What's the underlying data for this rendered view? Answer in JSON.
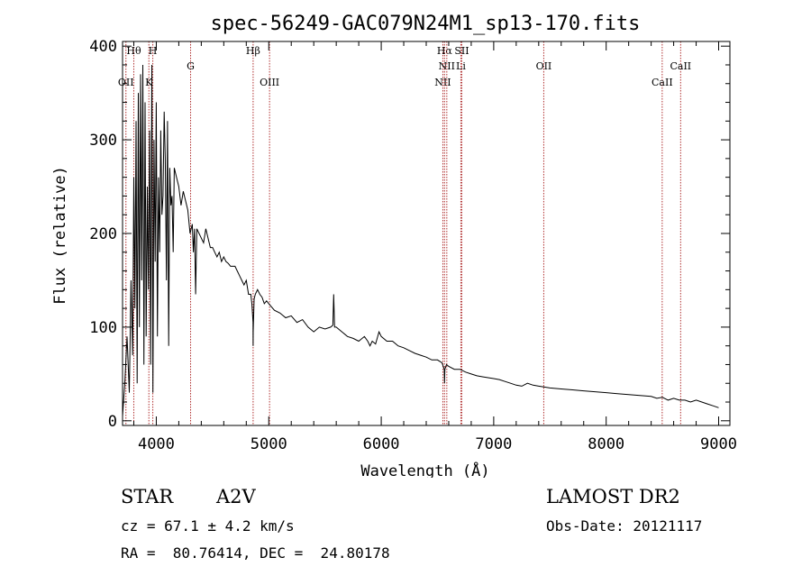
{
  "chart_data": {
    "type": "line",
    "title": "spec-56249-GAC079N24M1_sp13-170.fits",
    "xlabel": "Wavelength (Å)",
    "ylabel": "Flux (relative)",
    "xlim": [
      3700,
      9100
    ],
    "ylim": [
      -5,
      405
    ],
    "xticks": [
      4000,
      5000,
      6000,
      7000,
      8000,
      9000
    ],
    "yticks": [
      0,
      100,
      200,
      300,
      400
    ],
    "grid": false,
    "legend": "none",
    "series": [
      {
        "x": [
          3700,
          3720,
          3740,
          3760,
          3775,
          3790,
          3800,
          3810,
          3820,
          3830,
          3840,
          3850,
          3860,
          3870,
          3880,
          3890,
          3900,
          3910,
          3920,
          3930,
          3940,
          3950,
          3960,
          3970,
          3980,
          3990,
          4000,
          4010,
          4020,
          4030,
          4040,
          4050,
          4060,
          4070,
          4080,
          4090,
          4100,
          4110,
          4120,
          4130,
          4140,
          4150,
          4160,
          4180,
          4200,
          4220,
          4240,
          4260,
          4280,
          4300,
          4320,
          4330,
          4340,
          4350,
          4360,
          4380,
          4400,
          4420,
          4440,
          4460,
          4480,
          4500,
          4520,
          4540,
          4560,
          4580,
          4600,
          4620,
          4640,
          4660,
          4680,
          4700,
          4720,
          4740,
          4760,
          4780,
          4800,
          4820,
          4840,
          4850,
          4860,
          4861,
          4862,
          4870,
          4880,
          4900,
          4920,
          4940,
          4960,
          4980,
          5000,
          5050,
          5100,
          5150,
          5200,
          5250,
          5300,
          5350,
          5400,
          5450,
          5500,
          5550,
          5570,
          5577,
          5585,
          5600,
          5650,
          5700,
          5750,
          5800,
          5850,
          5880,
          5900,
          5920,
          5950,
          5980,
          6000,
          6050,
          6100,
          6150,
          6200,
          6250,
          6300,
          6350,
          6400,
          6450,
          6500,
          6540,
          6560,
          6563,
          6566,
          6580,
          6600,
          6650,
          6700,
          6750,
          6800,
          6850,
          6900,
          6950,
          7000,
          7050,
          7100,
          7150,
          7200,
          7250,
          7300,
          7350,
          7400,
          7450,
          7500,
          7600,
          7700,
          7800,
          7900,
          8000,
          8100,
          8200,
          8300,
          8400,
          8450,
          8500,
          8550,
          8600,
          8650,
          8700,
          8750,
          8800,
          8850,
          8900,
          8950,
          9000
        ],
        "values": [
          5,
          40,
          90,
          30,
          150,
          70,
          260,
          120,
          320,
          40,
          350,
          100,
          370,
          150,
          380,
          60,
          340,
          90,
          250,
          140,
          310,
          60,
          380,
          30,
          300,
          170,
          340,
          90,
          260,
          180,
          310,
          220,
          240,
          330,
          280,
          150,
          320,
          80,
          270,
          230,
          240,
          180,
          270,
          260,
          250,
          230,
          245,
          235,
          225,
          200,
          210,
          180,
          205,
          135,
          205,
          200,
          195,
          190,
          205,
          195,
          185,
          185,
          180,
          175,
          180,
          170,
          175,
          170,
          168,
          165,
          165,
          165,
          160,
          155,
          150,
          145,
          150,
          135,
          135,
          125,
          105,
          80,
          95,
          130,
          135,
          140,
          135,
          132,
          125,
          128,
          125,
          118,
          115,
          110,
          112,
          105,
          108,
          100,
          95,
          100,
          98,
          100,
          102,
          135,
          100,
          100,
          95,
          90,
          88,
          85,
          90,
          85,
          80,
          85,
          82,
          95,
          90,
          85,
          85,
          80,
          78,
          75,
          72,
          70,
          68,
          65,
          65,
          62,
          55,
          40,
          55,
          60,
          58,
          55,
          55,
          52,
          50,
          48,
          47,
          46,
          45,
          44,
          42,
          40,
          38,
          37,
          40,
          38,
          37,
          36,
          35,
          34,
          33,
          32,
          31,
          30,
          29,
          28,
          27,
          26,
          24,
          25,
          22,
          24,
          22,
          22,
          20,
          22,
          20,
          18,
          16,
          14
        ]
      }
    ],
    "lines": [
      {
        "x": 3730,
        "label": "OII",
        "row": 3
      },
      {
        "x": 3800,
        "label": "Hθ",
        "row": 1
      },
      {
        "x": 3934,
        "label": "K",
        "row": 3
      },
      {
        "x": 3969,
        "label": "H",
        "row": 1
      },
      {
        "x": 4305,
        "label": "G",
        "row": 2
      },
      {
        "x": 4861,
        "label": "Hβ",
        "row": 1
      },
      {
        "x": 5007,
        "label": "OIII",
        "row": 3
      },
      {
        "x": 6548,
        "label": "NII",
        "row": 3
      },
      {
        "x": 6563,
        "label": "Hα",
        "row": 1
      },
      {
        "x": 6583,
        "label": "NII",
        "row": 2
      },
      {
        "x": 6708,
        "label": "Li",
        "row": 2
      },
      {
        "x": 6716,
        "label": "SII",
        "row": 1
      },
      {
        "x": 7445,
        "label": "OII",
        "row": 2
      },
      {
        "x": 8498,
        "label": "CaII",
        "row": 3
      },
      {
        "x": 8662,
        "label": "CaII",
        "row": 2
      }
    ]
  },
  "info": {
    "object_class": "STAR",
    "subclass": "A2V",
    "survey": "LAMOST DR2",
    "redshift": "cz = 67.1 ± 4.2 km/s",
    "obs_date": "Obs-Date: 20121117",
    "coords": "RA =  80.76414, DEC =  24.80178"
  },
  "colors": {
    "line_marker": "#b03030",
    "spectrum": "#000000"
  }
}
